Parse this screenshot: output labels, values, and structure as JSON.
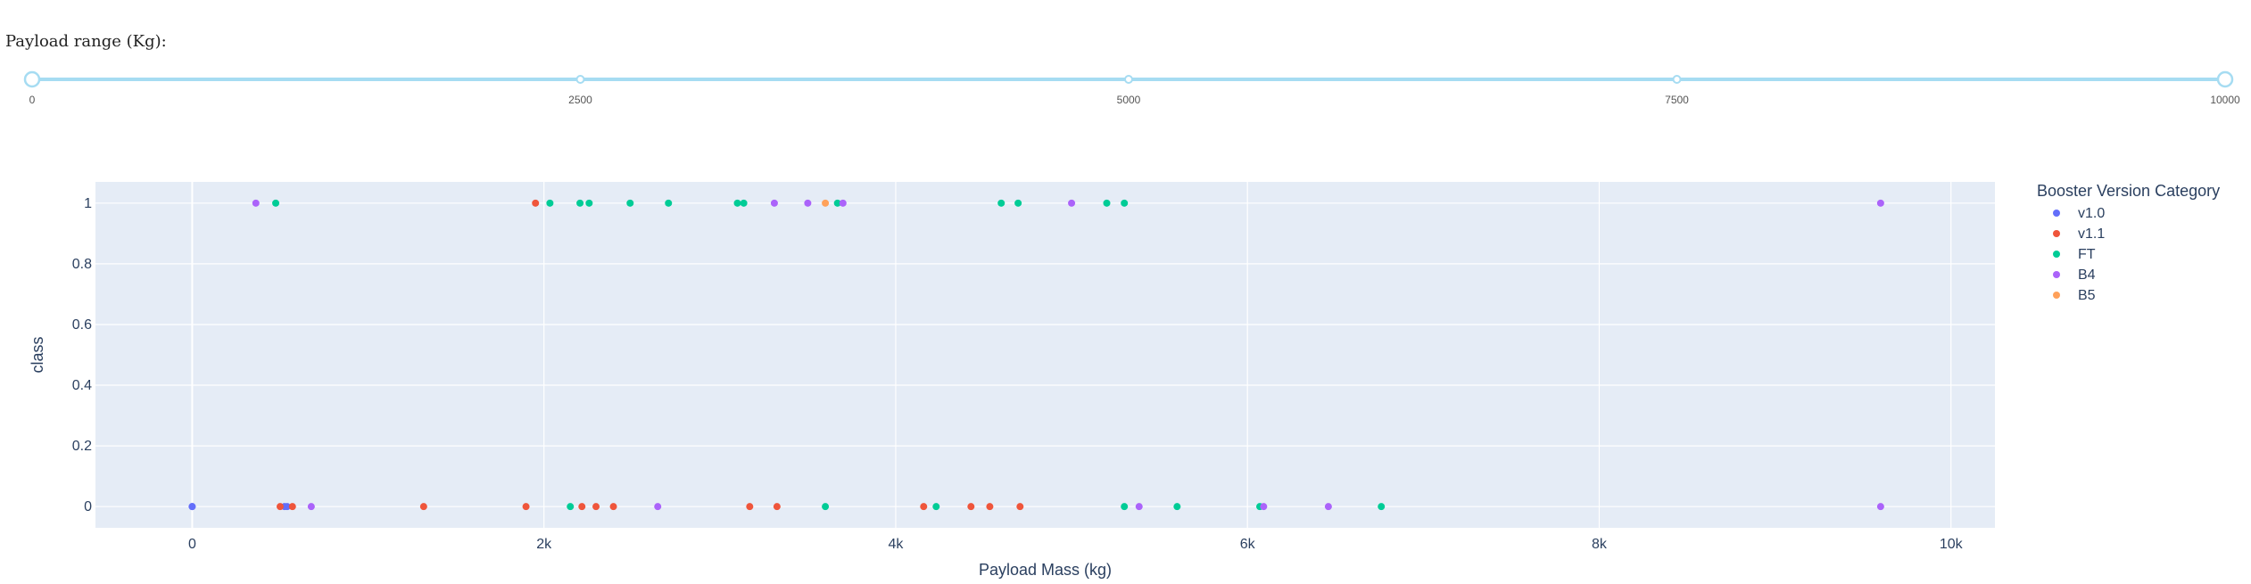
{
  "slider": {
    "label": "Payload range (Kg):",
    "min": 0,
    "max": 10000,
    "marks": [
      "0",
      "2500",
      "5000",
      "7500",
      "10000"
    ],
    "mark_values": [
      0,
      2500,
      5000,
      7500,
      10000
    ],
    "selected_range": [
      0,
      10000
    ],
    "color": "#a6dcf2"
  },
  "chart_data": {
    "type": "scatter",
    "xlabel": "Payload Mass (kg)",
    "ylabel": "class",
    "xlim": [
      -550,
      10250
    ],
    "ylim": [
      -0.07,
      1.07
    ],
    "x_ticks": [
      0,
      2000,
      4000,
      6000,
      8000,
      10000
    ],
    "x_tick_labels": [
      "0",
      "2k",
      "4k",
      "6k",
      "8k",
      "10k"
    ],
    "y_ticks": [
      0,
      0.2,
      0.4,
      0.6,
      0.8,
      1
    ],
    "y_tick_labels": [
      "0",
      "0.2",
      "0.4",
      "0.6",
      "0.8",
      "1"
    ],
    "grid": true,
    "plot_bgcolor": "#e5ecf6",
    "legend_title": "Booster Version Category",
    "legend_position": "right",
    "series": [
      {
        "name": "v1.0",
        "color": "#636efa",
        "points": [
          [
            0,
            0
          ],
          [
            0,
            0
          ],
          [
            525,
            0
          ],
          [
            540,
            0
          ]
        ]
      },
      {
        "name": "v1.1",
        "color": "#ef553b",
        "points": [
          [
            500,
            0
          ],
          [
            570,
            0
          ],
          [
            1316,
            0
          ],
          [
            1898,
            0
          ],
          [
            1952,
            1
          ],
          [
            2216,
            0
          ],
          [
            2296,
            0
          ],
          [
            2395,
            0
          ],
          [
            3170,
            0
          ],
          [
            3325,
            0
          ],
          [
            4159,
            0
          ],
          [
            4428,
            0
          ],
          [
            4535,
            0
          ],
          [
            4707,
            0
          ]
        ]
      },
      {
        "name": "FT",
        "color": "#00cc96",
        "points": [
          [
            475,
            1
          ],
          [
            2034,
            1
          ],
          [
            2150,
            0
          ],
          [
            2205,
            1
          ],
          [
            2257,
            1
          ],
          [
            2490,
            1
          ],
          [
            2708,
            1
          ],
          [
            3100,
            1
          ],
          [
            3136,
            1
          ],
          [
            3600,
            0
          ],
          [
            3669,
            1
          ],
          [
            4230,
            0
          ],
          [
            4600,
            1
          ],
          [
            4696,
            1
          ],
          [
            5200,
            1
          ],
          [
            5300,
            0
          ],
          [
            5300,
            1
          ],
          [
            5600,
            0
          ],
          [
            6070,
            0
          ],
          [
            6761,
            0
          ]
        ]
      },
      {
        "name": "B4",
        "color": "#ab63fa",
        "points": [
          [
            362,
            1
          ],
          [
            677,
            0
          ],
          [
            2647,
            0
          ],
          [
            3310,
            1
          ],
          [
            3500,
            1
          ],
          [
            3700,
            1
          ],
          [
            5000,
            1
          ],
          [
            5384,
            0
          ],
          [
            6092,
            0
          ],
          [
            6460,
            0
          ],
          [
            9600,
            0
          ],
          [
            9600,
            1
          ]
        ]
      },
      {
        "name": "B5",
        "color": "#ffa15a",
        "points": [
          [
            3600,
            1
          ]
        ]
      }
    ]
  }
}
